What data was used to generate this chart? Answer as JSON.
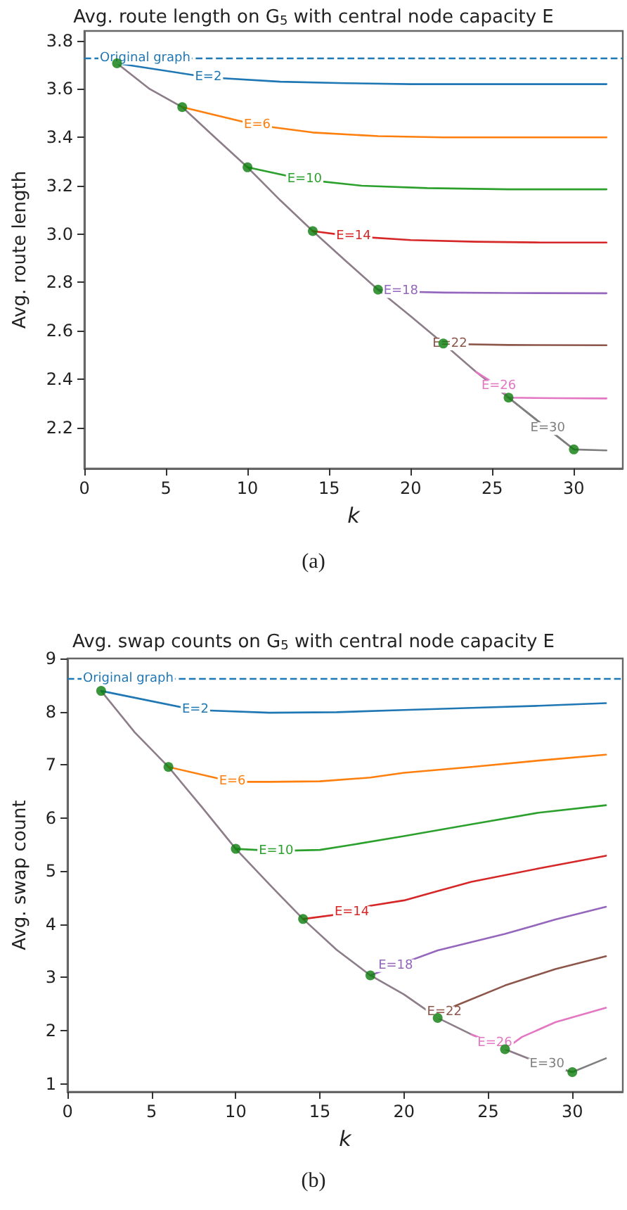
{
  "chart_data": [
    {
      "type": "line",
      "title": "Avg. route length on G$_{5}$ with central node capacity E",
      "xlabel": "k",
      "ylabel": "Avg. route length",
      "xlim": [
        0,
        33
      ],
      "xticks": [
        0,
        5,
        10,
        15,
        20,
        25,
        30
      ],
      "ylim": [
        2.03,
        3.84
      ],
      "yticks": [
        2.2,
        2.4,
        2.6,
        2.8,
        {
          "value": 3,
          "label": "3.0"
        },
        3.2,
        3.4,
        3.6,
        3.8
      ],
      "grid": false,
      "legend": false,
      "annotations": [
        "(a)"
      ],
      "ref_lines": [
        {
          "axis": "y",
          "value": 3.73,
          "label": "Original graph",
          "color": "#1f77b4",
          "line_style": "dashed"
        }
      ],
      "series": [
        {
          "color": "#8c7d89",
          "x": [
            2,
            4,
            6,
            8,
            10,
            12,
            14,
            16,
            18,
            20,
            22,
            24,
            26,
            28,
            30
          ],
          "values": [
            3.706,
            3.6,
            3.525,
            3.4,
            3.276,
            3.14,
            3.012,
            2.89,
            2.77,
            2.66,
            2.547,
            2.43,
            2.323,
            2.215,
            2.109
          ]
        },
        {
          "name": "E=2",
          "color": "#1f77b4",
          "x": [
            2,
            7.6,
            12,
            16,
            20,
            24,
            28,
            32
          ],
          "values": [
            3.706,
            3.648,
            3.63,
            3.624,
            3.62,
            3.62,
            3.62,
            3.62
          ]
        },
        {
          "name": "E=6",
          "color": "#ff7f0e",
          "x": [
            6,
            10.6,
            14,
            18,
            22,
            26,
            32
          ],
          "values": [
            3.525,
            3.45,
            3.42,
            3.405,
            3.4,
            3.4,
            3.4
          ]
        },
        {
          "name": "E=10",
          "color": "#2ca02c",
          "x": [
            10,
            13.5,
            17,
            21,
            26,
            32
          ],
          "values": [
            3.276,
            3.225,
            3.2,
            3.19,
            3.185,
            3.185
          ]
        },
        {
          "name": "E=14",
          "color": "#d62728",
          "x": [
            14,
            16.5,
            20,
            24,
            28,
            32
          ],
          "values": [
            3.012,
            2.99,
            2.975,
            2.968,
            2.965,
            2.965
          ]
        },
        {
          "name": "E=18",
          "color": "#9467bd",
          "x": [
            18,
            19.4,
            22,
            26,
            32
          ],
          "values": [
            2.77,
            2.762,
            2.758,
            2.756,
            2.755
          ]
        },
        {
          "name": "E=22",
          "color": "#8c564b",
          "x": [
            22,
            22.4,
            26,
            32
          ],
          "values": [
            2.547,
            2.545,
            2.541,
            2.54
          ]
        },
        {
          "name": "E=26",
          "color": "#e377c2",
          "x": [
            24,
            25.4,
            26,
            29,
            32
          ],
          "values": [
            2.43,
            2.37,
            2.323,
            2.321,
            2.32
          ]
        },
        {
          "name": "E=30",
          "color": "#7f7f7f",
          "x": [
            26,
            28.4,
            30,
            32
          ],
          "values": [
            2.323,
            2.195,
            2.109,
            2.105
          ]
        },
        {
          "type": "scatter",
          "marker": "circle",
          "color": "#0b7d0b",
          "x": [
            2,
            6,
            10,
            14,
            18,
            22,
            26,
            30
          ],
          "values": [
            3.706,
            3.525,
            3.276,
            3.012,
            2.77,
            2.547,
            2.323,
            2.109
          ]
        }
      ]
    },
    {
      "type": "line",
      "title": "Avg. swap counts on G$_{5}$ with central node capacity E",
      "xlabel": "k",
      "ylabel": "Avg. swap count",
      "xlim": [
        0,
        33
      ],
      "xticks": [
        0,
        5,
        10,
        15,
        20,
        25,
        30
      ],
      "ylim": [
        0.85,
        9
      ],
      "yticks": [
        1,
        2,
        3,
        4,
        5,
        6,
        7,
        8,
        9
      ],
      "grid": false,
      "legend": false,
      "annotations": [
        "(b)"
      ],
      "ref_lines": [
        {
          "axis": "y",
          "value": 8.63,
          "label": "Original graph",
          "color": "#1f77b4",
          "line_style": "dashed"
        }
      ],
      "series": [
        {
          "color": "#8c7d89",
          "x": [
            2,
            4,
            6,
            8,
            10,
            12,
            14,
            16,
            18,
            20,
            22,
            24,
            26,
            28,
            30
          ],
          "values": [
            8.39,
            7.61,
            6.96,
            6.2,
            5.42,
            4.75,
            4.1,
            3.52,
            3.04,
            2.68,
            2.24,
            1.93,
            1.65,
            1.4,
            1.22
          ]
        },
        {
          "name": "E=2",
          "color": "#1f77b4",
          "x": [
            2,
            7.6,
            12,
            16,
            20,
            24,
            28,
            32
          ],
          "values": [
            8.39,
            8.03,
            7.98,
            7.99,
            8.03,
            8.07,
            8.11,
            8.16
          ]
        },
        {
          "name": "E=6",
          "color": "#ff7f0e",
          "x": [
            6,
            9.8,
            12,
            15,
            18,
            20,
            24,
            28,
            32
          ],
          "values": [
            6.96,
            6.68,
            6.68,
            6.69,
            6.76,
            6.85,
            6.96,
            7.08,
            7.19
          ]
        },
        {
          "name": "E=10",
          "color": "#2ca02c",
          "x": [
            10,
            12.4,
            15,
            17,
            20,
            24,
            28,
            32
          ],
          "values": [
            5.42,
            5.38,
            5.4,
            5.5,
            5.66,
            5.88,
            6.1,
            6.24
          ]
        },
        {
          "name": "E=14",
          "color": "#d62728",
          "x": [
            14,
            16.9,
            18,
            20,
            24,
            28,
            32
          ],
          "values": [
            4.1,
            4.22,
            4.35,
            4.45,
            4.8,
            5.05,
            5.29
          ]
        },
        {
          "name": "E=18",
          "color": "#9467bd",
          "x": [
            18,
            19.5,
            22,
            26,
            29,
            32
          ],
          "values": [
            3.04,
            3.22,
            3.51,
            3.82,
            4.09,
            4.33
          ]
        },
        {
          "name": "E=22",
          "color": "#8c564b",
          "x": [
            22,
            22.4,
            23,
            26,
            29,
            32
          ],
          "values": [
            2.24,
            2.34,
            2.46,
            2.85,
            3.16,
            3.4
          ]
        },
        {
          "name": "E=26",
          "color": "#e377c2",
          "x": [
            24,
            25.4,
            26,
            27,
            29,
            32
          ],
          "values": [
            1.93,
            1.76,
            1.65,
            1.88,
            2.16,
            2.43
          ]
        },
        {
          "name": "E=30",
          "color": "#7f7f7f",
          "x": [
            28,
            28.5,
            30,
            32
          ],
          "values": [
            1.4,
            1.36,
            1.22,
            1.48
          ]
        },
        {
          "type": "scatter",
          "marker": "circle",
          "color": "#0b7d0b",
          "x": [
            2,
            6,
            10,
            14,
            18,
            22,
            26,
            30
          ],
          "values": [
            8.39,
            6.96,
            5.42,
            4.1,
            3.04,
            2.24,
            1.65,
            1.22
          ]
        }
      ]
    }
  ]
}
